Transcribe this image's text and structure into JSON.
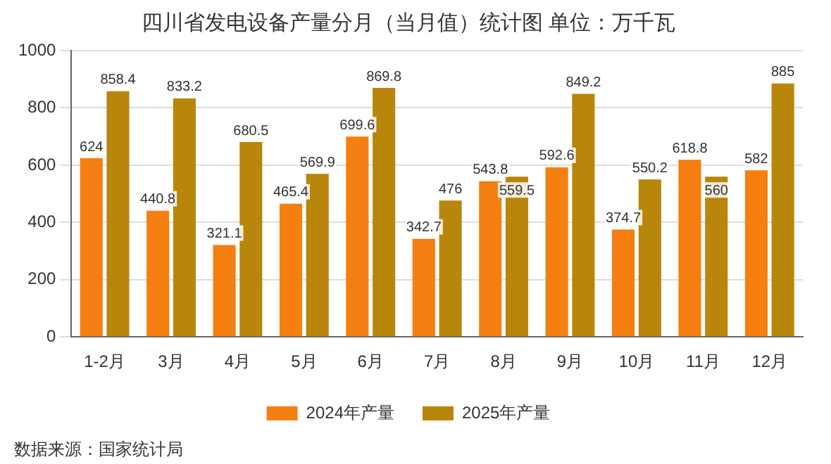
{
  "chart_data": {
    "type": "bar",
    "title": "四川省发电设备产量分月（当月值）统计图 单位：万千瓦",
    "categories": [
      "1-2月",
      "3月",
      "4月",
      "5月",
      "6月",
      "7月",
      "8月",
      "9月",
      "10月",
      "11月",
      "12月"
    ],
    "series": [
      {
        "name": "2024年产量",
        "color": "#f57f10",
        "values": [
          624,
          440.8,
          321.1,
          465.4,
          699.6,
          342.7,
          543.8,
          592.6,
          374.7,
          618.8,
          582
        ]
      },
      {
        "name": "2025年产量",
        "color": "#b8860b",
        "values": [
          858.4,
          833.2,
          680.5,
          569.9,
          869.8,
          476,
          559.5,
          849.2,
          550.2,
          560,
          885
        ]
      }
    ],
    "ylim": [
      0,
      1000
    ],
    "yticks": [
      0,
      200,
      400,
      600,
      800,
      1000
    ],
    "grid": "y",
    "legend": "bottom",
    "data_labels": true,
    "annotations": [
      "数据来源：国家统计局"
    ]
  }
}
